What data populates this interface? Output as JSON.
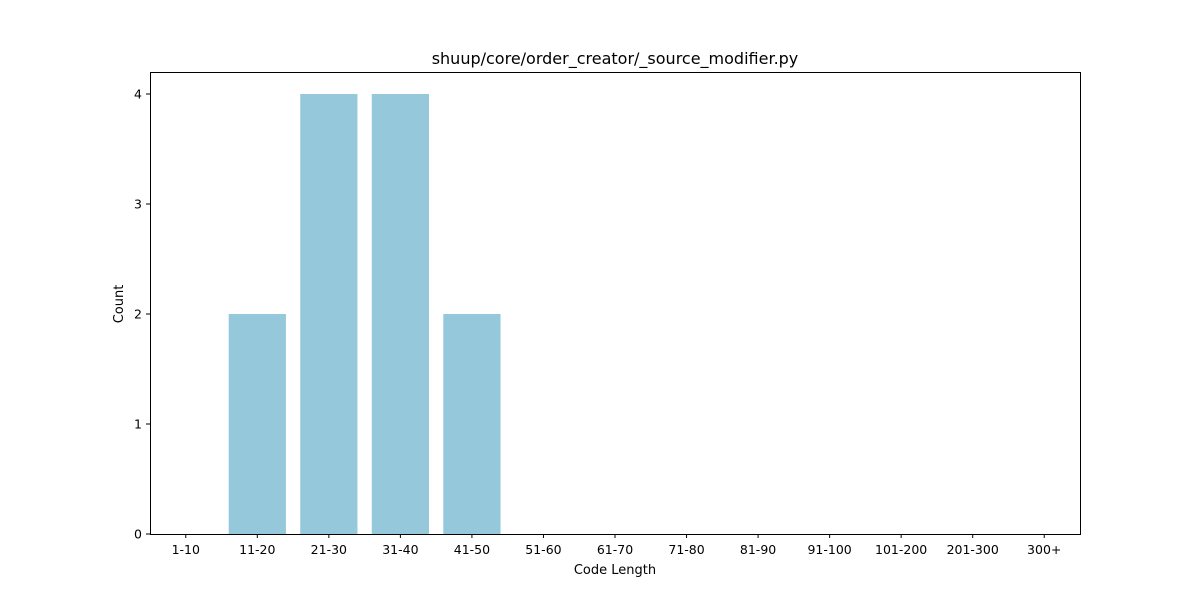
{
  "chart_data": {
    "type": "bar",
    "title": "shuup/core/order_creator/_source_modifier.py",
    "xlabel": "Code Length",
    "ylabel": "Count",
    "categories": [
      "1-10",
      "11-20",
      "21-30",
      "31-40",
      "41-50",
      "51-60",
      "61-70",
      "71-80",
      "81-90",
      "91-100",
      "101-200",
      "201-300",
      "300+"
    ],
    "values": [
      0,
      2,
      4,
      4,
      2,
      0,
      0,
      0,
      0,
      0,
      0,
      0,
      0
    ],
    "ylim": [
      0,
      4.2
    ],
    "yticks": [
      0,
      1,
      2,
      3,
      4
    ],
    "grid": false,
    "legend": "none",
    "bar_color": "#96c8dc"
  }
}
